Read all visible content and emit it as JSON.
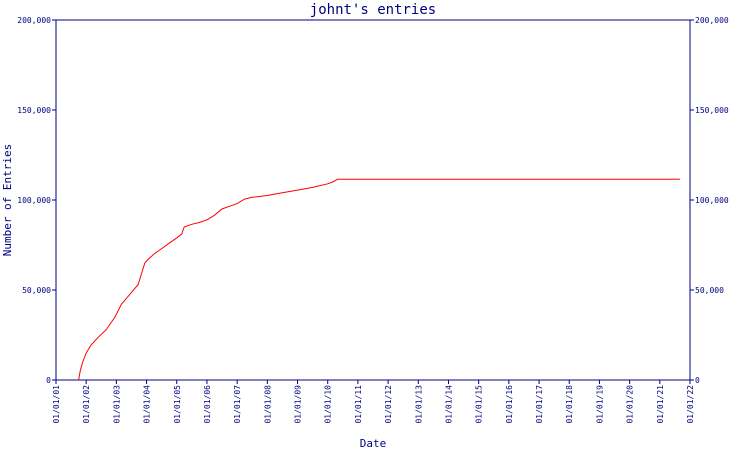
{
  "chart_data": {
    "type": "line",
    "title": "johnt's entries",
    "xlabel": "Date",
    "ylabel": "Number of Entries",
    "x_categories": [
      "01/01/01",
      "01/01/02",
      "01/01/03",
      "01/01/04",
      "01/01/05",
      "01/01/06",
      "01/01/07",
      "01/01/08",
      "01/01/09",
      "01/01/10",
      "01/01/11",
      "01/01/12",
      "01/01/13",
      "01/01/14",
      "01/01/15",
      "01/01/16",
      "01/01/17",
      "01/01/18",
      "01/01/19",
      "01/01/20",
      "01/01/21",
      "01/01/22"
    ],
    "ylim": [
      0,
      200000
    ],
    "y_ticks": [
      0,
      50000,
      100000,
      150000,
      200000
    ],
    "y_tick_labels": [
      "0",
      "50,000",
      "100,000",
      "150,000",
      "200,000"
    ],
    "grid": false,
    "series": [
      {
        "color": "#ff0000",
        "points": [
          [
            "2001-10-01",
            0
          ],
          [
            "2001-10-20",
            5000
          ],
          [
            "2001-11-20",
            10000
          ],
          [
            "2002-01-01",
            15000
          ],
          [
            "2002-03-01",
            19500
          ],
          [
            "2002-06-01",
            24000
          ],
          [
            "2002-09-01",
            28000
          ],
          [
            "2002-12-15",
            35000
          ],
          [
            "2003-03-01",
            42000
          ],
          [
            "2003-06-01",
            47000
          ],
          [
            "2003-09-20",
            53000
          ],
          [
            "2003-12-10",
            65000
          ],
          [
            "2004-01-20",
            67000
          ],
          [
            "2004-04-01",
            70000
          ],
          [
            "2004-07-01",
            73000
          ],
          [
            "2004-10-01",
            76000
          ],
          [
            "2005-01-01",
            79000
          ],
          [
            "2005-03-01",
            81000
          ],
          [
            "2005-04-01",
            85000
          ],
          [
            "2005-07-01",
            86500
          ],
          [
            "2005-10-01",
            87500
          ],
          [
            "2006-01-01",
            89000
          ],
          [
            "2006-04-01",
            91500
          ],
          [
            "2006-07-01",
            95000
          ],
          [
            "2006-10-01",
            96500
          ],
          [
            "2007-01-01",
            98000
          ],
          [
            "2007-04-01",
            100500
          ],
          [
            "2007-07-01",
            101500
          ],
          [
            "2008-01-01",
            102500
          ],
          [
            "2008-07-01",
            104000
          ],
          [
            "2009-01-01",
            105500
          ],
          [
            "2009-07-01",
            107000
          ],
          [
            "2010-01-01",
            109000
          ],
          [
            "2010-03-01",
            110000
          ],
          [
            "2010-05-01",
            111500
          ],
          [
            "2011-01-01",
            111500
          ],
          [
            "2015-01-01",
            111500
          ],
          [
            "2021-09-01",
            111500
          ]
        ]
      }
    ]
  }
}
